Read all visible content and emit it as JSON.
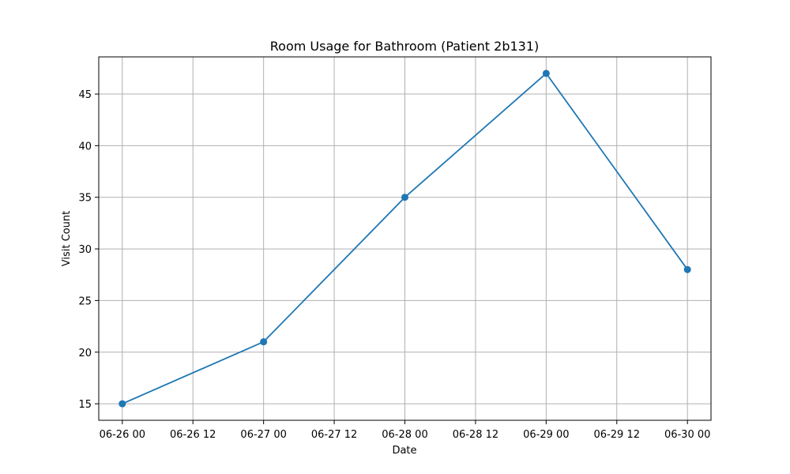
{
  "chart_data": {
    "type": "line",
    "title": "Room Usage for Bathroom (Patient 2b131)",
    "xlabel": "Date",
    "ylabel": "Visit Count",
    "x": [
      "06-26",
      "06-27",
      "06-28",
      "06-29",
      "06-30"
    ],
    "series": [
      {
        "values": [
          15,
          21,
          35,
          47,
          28
        ],
        "color": "#1f77b4",
        "marker": "circle"
      }
    ],
    "xlim": [
      "06-25 20",
      "06-30 04"
    ],
    "ylim": [
      13.4,
      48.6
    ],
    "x_ticks": [
      "06-26 00",
      "06-26 12",
      "06-27 00",
      "06-27 12",
      "06-28 00",
      "06-28 12",
      "06-29 00",
      "06-29 12",
      "06-30 00"
    ],
    "y_ticks": [
      15,
      20,
      25,
      30,
      35,
      40,
      45
    ],
    "grid": true,
    "colors": {
      "grid": "#b0b0b0",
      "axis": "#000000",
      "line": "#1f77b4"
    }
  }
}
